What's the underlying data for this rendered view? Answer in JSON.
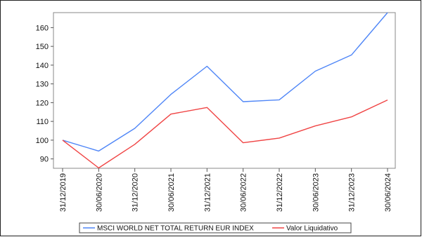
{
  "chart_data": {
    "type": "line",
    "title": "",
    "xlabel": "",
    "ylabel": "",
    "categories": [
      "31/12/2019",
      "30/06/2020",
      "31/12/2020",
      "30/06/2021",
      "31/12/2021",
      "30/06/2022",
      "31/12/2022",
      "30/06/2023",
      "31/12/2023",
      "30/06/2024"
    ],
    "ylim": [
      85,
      168
    ],
    "yticks": [
      90,
      100,
      110,
      120,
      130,
      140,
      150,
      160
    ],
    "grid": false,
    "legend": "bottom",
    "series": [
      {
        "name": "MSCI WORLD NET TOTAL RETURN EUR INDEX",
        "color": "#4f86f7",
        "values": [
          100,
          94.2,
          106.3,
          124.4,
          139.4,
          120.5,
          121.5,
          136.8,
          145.4,
          168.0
        ]
      },
      {
        "name": "Valor Liquidativo",
        "color": "#f04545",
        "values": [
          100,
          85.2,
          97.8,
          113.9,
          117.4,
          98.6,
          101.1,
          107.6,
          112.4,
          121.4
        ]
      }
    ]
  }
}
